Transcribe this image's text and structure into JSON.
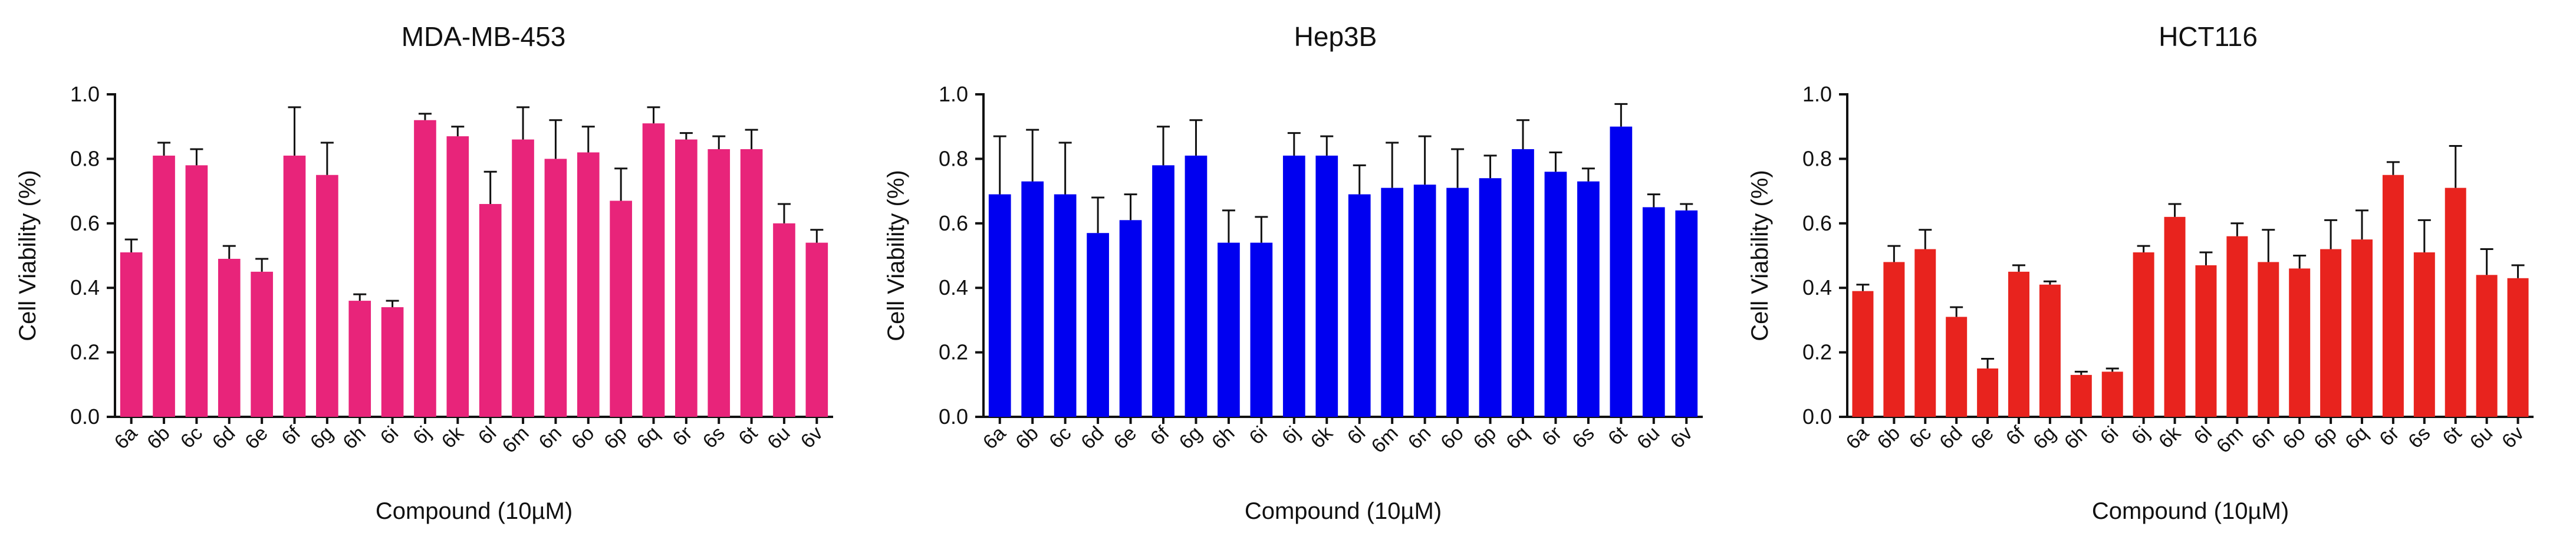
{
  "figure": {
    "description_free": true
  },
  "chart_data": [
    {
      "type": "bar",
      "title": "MDA-MB-453",
      "xlabel": "Compound (10µM)",
      "ylabel": "Cell Viability (%)",
      "ylim": [
        0,
        1.0
      ],
      "yticks": [
        "0.0",
        "0.2",
        "0.4",
        "0.6",
        "0.8",
        "1.0"
      ],
      "color": "#E8247A",
      "categories": [
        "6a",
        "6b",
        "6c",
        "6d",
        "6e",
        "6f",
        "6g",
        "6h",
        "6i",
        "6j",
        "6k",
        "6l",
        "6m",
        "6n",
        "6o",
        "6p",
        "6q",
        "6r",
        "6s",
        "6t",
        "6u",
        "6v"
      ],
      "values": [
        0.51,
        0.81,
        0.78,
        0.49,
        0.45,
        0.81,
        0.75,
        0.36,
        0.34,
        0.92,
        0.87,
        0.66,
        0.86,
        0.8,
        0.82,
        0.67,
        0.91,
        0.86,
        0.83,
        0.83,
        0.6,
        0.54
      ],
      "errors": [
        0.04,
        0.04,
        0.05,
        0.04,
        0.04,
        0.15,
        0.1,
        0.02,
        0.02,
        0.02,
        0.03,
        0.1,
        0.1,
        0.12,
        0.08,
        0.1,
        0.05,
        0.02,
        0.04,
        0.06,
        0.06,
        0.04
      ]
    },
    {
      "type": "bar",
      "title": "Hep3B",
      "xlabel": "Compound (10µM)",
      "ylabel": "Cell Viability (%)",
      "ylim": [
        0,
        1.0
      ],
      "yticks": [
        "0.0",
        "0.2",
        "0.4",
        "0.6",
        "0.8",
        "1.0"
      ],
      "color": "#0000F0",
      "categories": [
        "6a",
        "6b",
        "6c",
        "6d",
        "6e",
        "6f",
        "6g",
        "6h",
        "6i",
        "6j",
        "6k",
        "6l",
        "6m",
        "6n",
        "6o",
        "6p",
        "6q",
        "6r",
        "6s",
        "6t",
        "6u",
        "6v"
      ],
      "values": [
        0.69,
        0.73,
        0.69,
        0.57,
        0.61,
        0.78,
        0.81,
        0.54,
        0.54,
        0.81,
        0.81,
        0.69,
        0.71,
        0.72,
        0.71,
        0.74,
        0.83,
        0.76,
        0.73,
        0.9,
        0.65,
        0.64
      ],
      "errors": [
        0.18,
        0.16,
        0.16,
        0.11,
        0.08,
        0.12,
        0.11,
        0.1,
        0.08,
        0.07,
        0.06,
        0.09,
        0.14,
        0.15,
        0.12,
        0.07,
        0.09,
        0.06,
        0.04,
        0.07,
        0.04,
        0.02
      ]
    },
    {
      "type": "bar",
      "title": "HCT116",
      "xlabel": "Compound (10µM)",
      "ylabel": "Cell Viability (%)",
      "ylim": [
        0,
        1.0
      ],
      "yticks": [
        "0.0",
        "0.2",
        "0.4",
        "0.6",
        "0.8",
        "1.0"
      ],
      "color": "#E8231E",
      "categories": [
        "6a",
        "6b",
        "6c",
        "6d",
        "6e",
        "6f",
        "6g",
        "6h",
        "6i",
        "6j",
        "6k",
        "6l",
        "6m",
        "6n",
        "6o",
        "6p",
        "6q",
        "6r",
        "6s",
        "6t",
        "6u",
        "6v"
      ],
      "values": [
        0.39,
        0.48,
        0.52,
        0.31,
        0.15,
        0.45,
        0.41,
        0.13,
        0.14,
        0.51,
        0.62,
        0.47,
        0.56,
        0.48,
        0.46,
        0.52,
        0.55,
        0.75,
        0.51,
        0.71,
        0.44,
        0.43
      ],
      "errors": [
        0.02,
        0.05,
        0.06,
        0.03,
        0.03,
        0.02,
        0.01,
        0.01,
        0.01,
        0.02,
        0.04,
        0.04,
        0.04,
        0.1,
        0.04,
        0.09,
        0.09,
        0.04,
        0.1,
        0.13,
        0.08,
        0.04
      ]
    }
  ]
}
